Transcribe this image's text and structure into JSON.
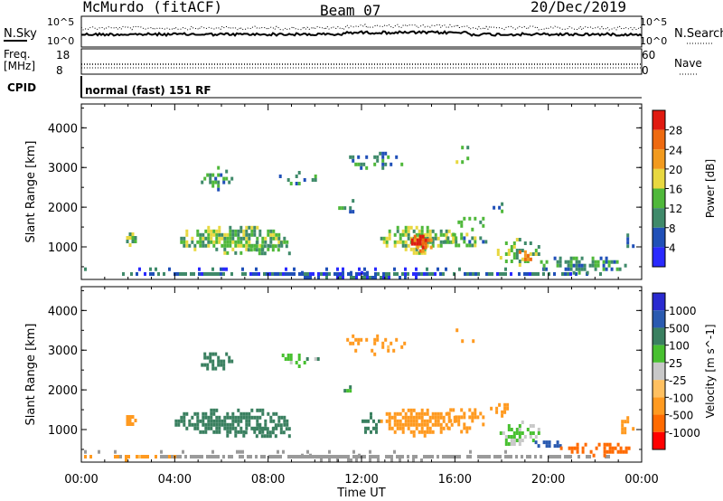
{
  "header": {
    "station": "McMurdo (fitACF)",
    "beam": "Beam 07",
    "date": "20/Dec/2019"
  },
  "top_panels": {
    "nsky_label": "N.Sky",
    "nsearch_label": "N.Search",
    "noise_ticks": [
      "10^5",
      "10^0"
    ],
    "freq_label": "Freq.",
    "freq_unit": "[MHz]",
    "freq_ticks": [
      "18",
      "8"
    ],
    "nave_label": "Nave",
    "nave_ticks": [
      "60",
      "0"
    ],
    "cpid_label": "CPID",
    "cpid_text": "normal (fast) 151 RF"
  },
  "colors": {
    "power": [
      "#2a2aff",
      "#2050b8",
      "#3f8a6a",
      "#4fb83a",
      "#e8d840",
      "#f29a1e",
      "#ee6a10",
      "#e01a10"
    ],
    "velocity": [
      "#ff0000",
      "#ff6a00",
      "#ff9a20",
      "#ffc060",
      "#c8c8c8",
      "#48c030",
      "#3a8060",
      "#2a5ab0",
      "#2a2ad0"
    ],
    "ground": "#9a9a9a"
  },
  "chart_data": [
    {
      "type": "heatmap",
      "parameter": "Power",
      "ylabel": "Slant Range [km]",
      "xlabel": "Time UT",
      "colorbar_label": "Power [dB]",
      "colorbar_ticks": [
        "28",
        "24",
        "20",
        "16",
        "12",
        "8",
        "4"
      ],
      "x": [
        "00:00",
        "04:00",
        "08:00",
        "12:00",
        "16:00",
        "20:00",
        "00:00"
      ],
      "xlim_hours": [
        0,
        24
      ],
      "ylim": [
        180,
        4600
      ],
      "yticks": [
        1000,
        2000,
        3000,
        4000
      ],
      "scale": [
        0,
        32
      ],
      "blobs": [
        {
          "t0": 0.0,
          "t1": 24.0,
          "r0": 180,
          "r1": 300,
          "v": 7,
          "density": 0.85
        },
        {
          "t0": 0.0,
          "t1": 20.0,
          "r0": 300,
          "r1": 480,
          "v": 5,
          "density": 0.18
        },
        {
          "t0": 1.8,
          "t1": 2.3,
          "r0": 1000,
          "r1": 1300,
          "v": 14,
          "density": 0.7
        },
        {
          "t0": 4.0,
          "t1": 8.8,
          "r0": 800,
          "r1": 1500,
          "v": 14,
          "density": 0.75
        },
        {
          "t0": 5.0,
          "t1": 6.4,
          "r0": 2400,
          "r1": 2950,
          "v": 11,
          "density": 0.5
        },
        {
          "t0": 7.0,
          "t1": 9.0,
          "r0": 700,
          "r1": 1100,
          "v": 13,
          "density": 0.5
        },
        {
          "t0": 8.0,
          "t1": 10.2,
          "r0": 2550,
          "r1": 2900,
          "v": 10,
          "density": 0.3
        },
        {
          "t0": 11.0,
          "t1": 13.8,
          "r0": 2850,
          "r1": 3350,
          "v": 10,
          "density": 0.25
        },
        {
          "t0": 11.0,
          "t1": 11.8,
          "r0": 1750,
          "r1": 2200,
          "v": 9,
          "density": 0.35
        },
        {
          "t0": 12.8,
          "t1": 16.0,
          "r0": 800,
          "r1": 1500,
          "v": 15,
          "density": 0.8
        },
        {
          "t0": 14.0,
          "t1": 15.0,
          "r0": 850,
          "r1": 1250,
          "v": 26,
          "density": 0.9
        },
        {
          "t0": 15.3,
          "t1": 17.3,
          "r0": 900,
          "r1": 1300,
          "v": 12,
          "density": 0.55
        },
        {
          "t0": 16.0,
          "t1": 17.6,
          "r0": 1300,
          "r1": 1700,
          "v": 11,
          "density": 0.35
        },
        {
          "t0": 15.8,
          "t1": 16.8,
          "r0": 3000,
          "r1": 3550,
          "v": 12,
          "density": 0.2
        },
        {
          "t0": 17.5,
          "t1": 18.3,
          "r0": 1850,
          "r1": 2100,
          "v": 9,
          "density": 0.45
        },
        {
          "t0": 17.8,
          "t1": 19.6,
          "r0": 500,
          "r1": 1150,
          "v": 14,
          "density": 0.55
        },
        {
          "t0": 18.5,
          "t1": 19.3,
          "r0": 550,
          "r1": 850,
          "v": 22,
          "density": 0.7
        },
        {
          "t0": 19.3,
          "t1": 23.6,
          "r0": 300,
          "r1": 700,
          "v": 11,
          "density": 0.6
        },
        {
          "t0": 23.0,
          "t1": 23.6,
          "r0": 700,
          "r1": 1400,
          "v": 9,
          "density": 0.35
        }
      ]
    },
    {
      "type": "heatmap",
      "parameter": "Velocity",
      "ylabel": "Slant Range [km]",
      "xlabel": "Time UT",
      "colorbar_label": "Velocity [m s^-1]",
      "colorbar_ticks": [
        "1000",
        "500",
        "100",
        "25",
        "-25",
        "-100",
        "-500",
        "-1000"
      ],
      "x": [
        "00:00",
        "04:00",
        "08:00",
        "12:00",
        "16:00",
        "20:00",
        "00:00"
      ],
      "xlim_hours": [
        0,
        24
      ],
      "ylim": [
        180,
        4600
      ],
      "yticks": [
        1000,
        2000,
        3000,
        4000
      ],
      "scale": [
        -1250,
        1250
      ],
      "blobs": [
        {
          "t0": 0.0,
          "t1": 24.0,
          "r0": 180,
          "r1": 300,
          "v": 0,
          "density": 0.85,
          "ground": true
        },
        {
          "t0": 0.0,
          "t1": 4.0,
          "r0": 180,
          "r1": 330,
          "v": -150,
          "density": 0.6
        },
        {
          "t0": 0.0,
          "t1": 20.0,
          "r0": 300,
          "r1": 480,
          "v": 0,
          "density": 0.15,
          "ground": true
        },
        {
          "t0": 1.8,
          "t1": 2.3,
          "r0": 1000,
          "r1": 1300,
          "v": -300,
          "density": 0.7
        },
        {
          "t0": 4.0,
          "t1": 8.8,
          "r0": 800,
          "r1": 1500,
          "v": 250,
          "density": 0.75
        },
        {
          "t0": 5.0,
          "t1": 6.4,
          "r0": 2400,
          "r1": 2950,
          "v": 250,
          "density": 0.5
        },
        {
          "t0": 7.0,
          "t1": 9.0,
          "r0": 700,
          "r1": 1100,
          "v": 250,
          "density": 0.5
        },
        {
          "t0": 8.0,
          "t1": 10.2,
          "r0": 2550,
          "r1": 2900,
          "v": 80,
          "density": 0.3
        },
        {
          "t0": 11.0,
          "t1": 13.8,
          "r0": 2850,
          "r1": 3350,
          "v": -150,
          "density": 0.25
        },
        {
          "t0": 11.0,
          "t1": 11.8,
          "r0": 1750,
          "r1": 2200,
          "v": 80,
          "density": 0.35
        },
        {
          "t0": 12.0,
          "t1": 12.8,
          "r0": 800,
          "r1": 1400,
          "v": 200,
          "density": 0.6
        },
        {
          "t0": 12.8,
          "t1": 16.0,
          "r0": 800,
          "r1": 1500,
          "v": -250,
          "density": 0.8
        },
        {
          "t0": 15.3,
          "t1": 17.3,
          "r0": 900,
          "r1": 1500,
          "v": -300,
          "density": 0.55
        },
        {
          "t0": 15.8,
          "t1": 16.8,
          "r0": 3000,
          "r1": 3550,
          "v": -300,
          "density": 0.2
        },
        {
          "t0": 17.5,
          "t1": 18.3,
          "r0": 1300,
          "r1": 1650,
          "v": -250,
          "density": 0.45
        },
        {
          "t0": 17.8,
          "t1": 19.6,
          "r0": 500,
          "r1": 1150,
          "v": 40,
          "density": 0.55
        },
        {
          "t0": 19.3,
          "t1": 20.5,
          "r0": 450,
          "r1": 700,
          "v": 700,
          "density": 0.7
        },
        {
          "t0": 20.5,
          "t1": 23.6,
          "r0": 300,
          "r1": 600,
          "v": -700,
          "density": 0.6
        },
        {
          "t0": 23.0,
          "t1": 23.6,
          "r0": 700,
          "r1": 1400,
          "v": -400,
          "density": 0.35
        }
      ]
    }
  ]
}
